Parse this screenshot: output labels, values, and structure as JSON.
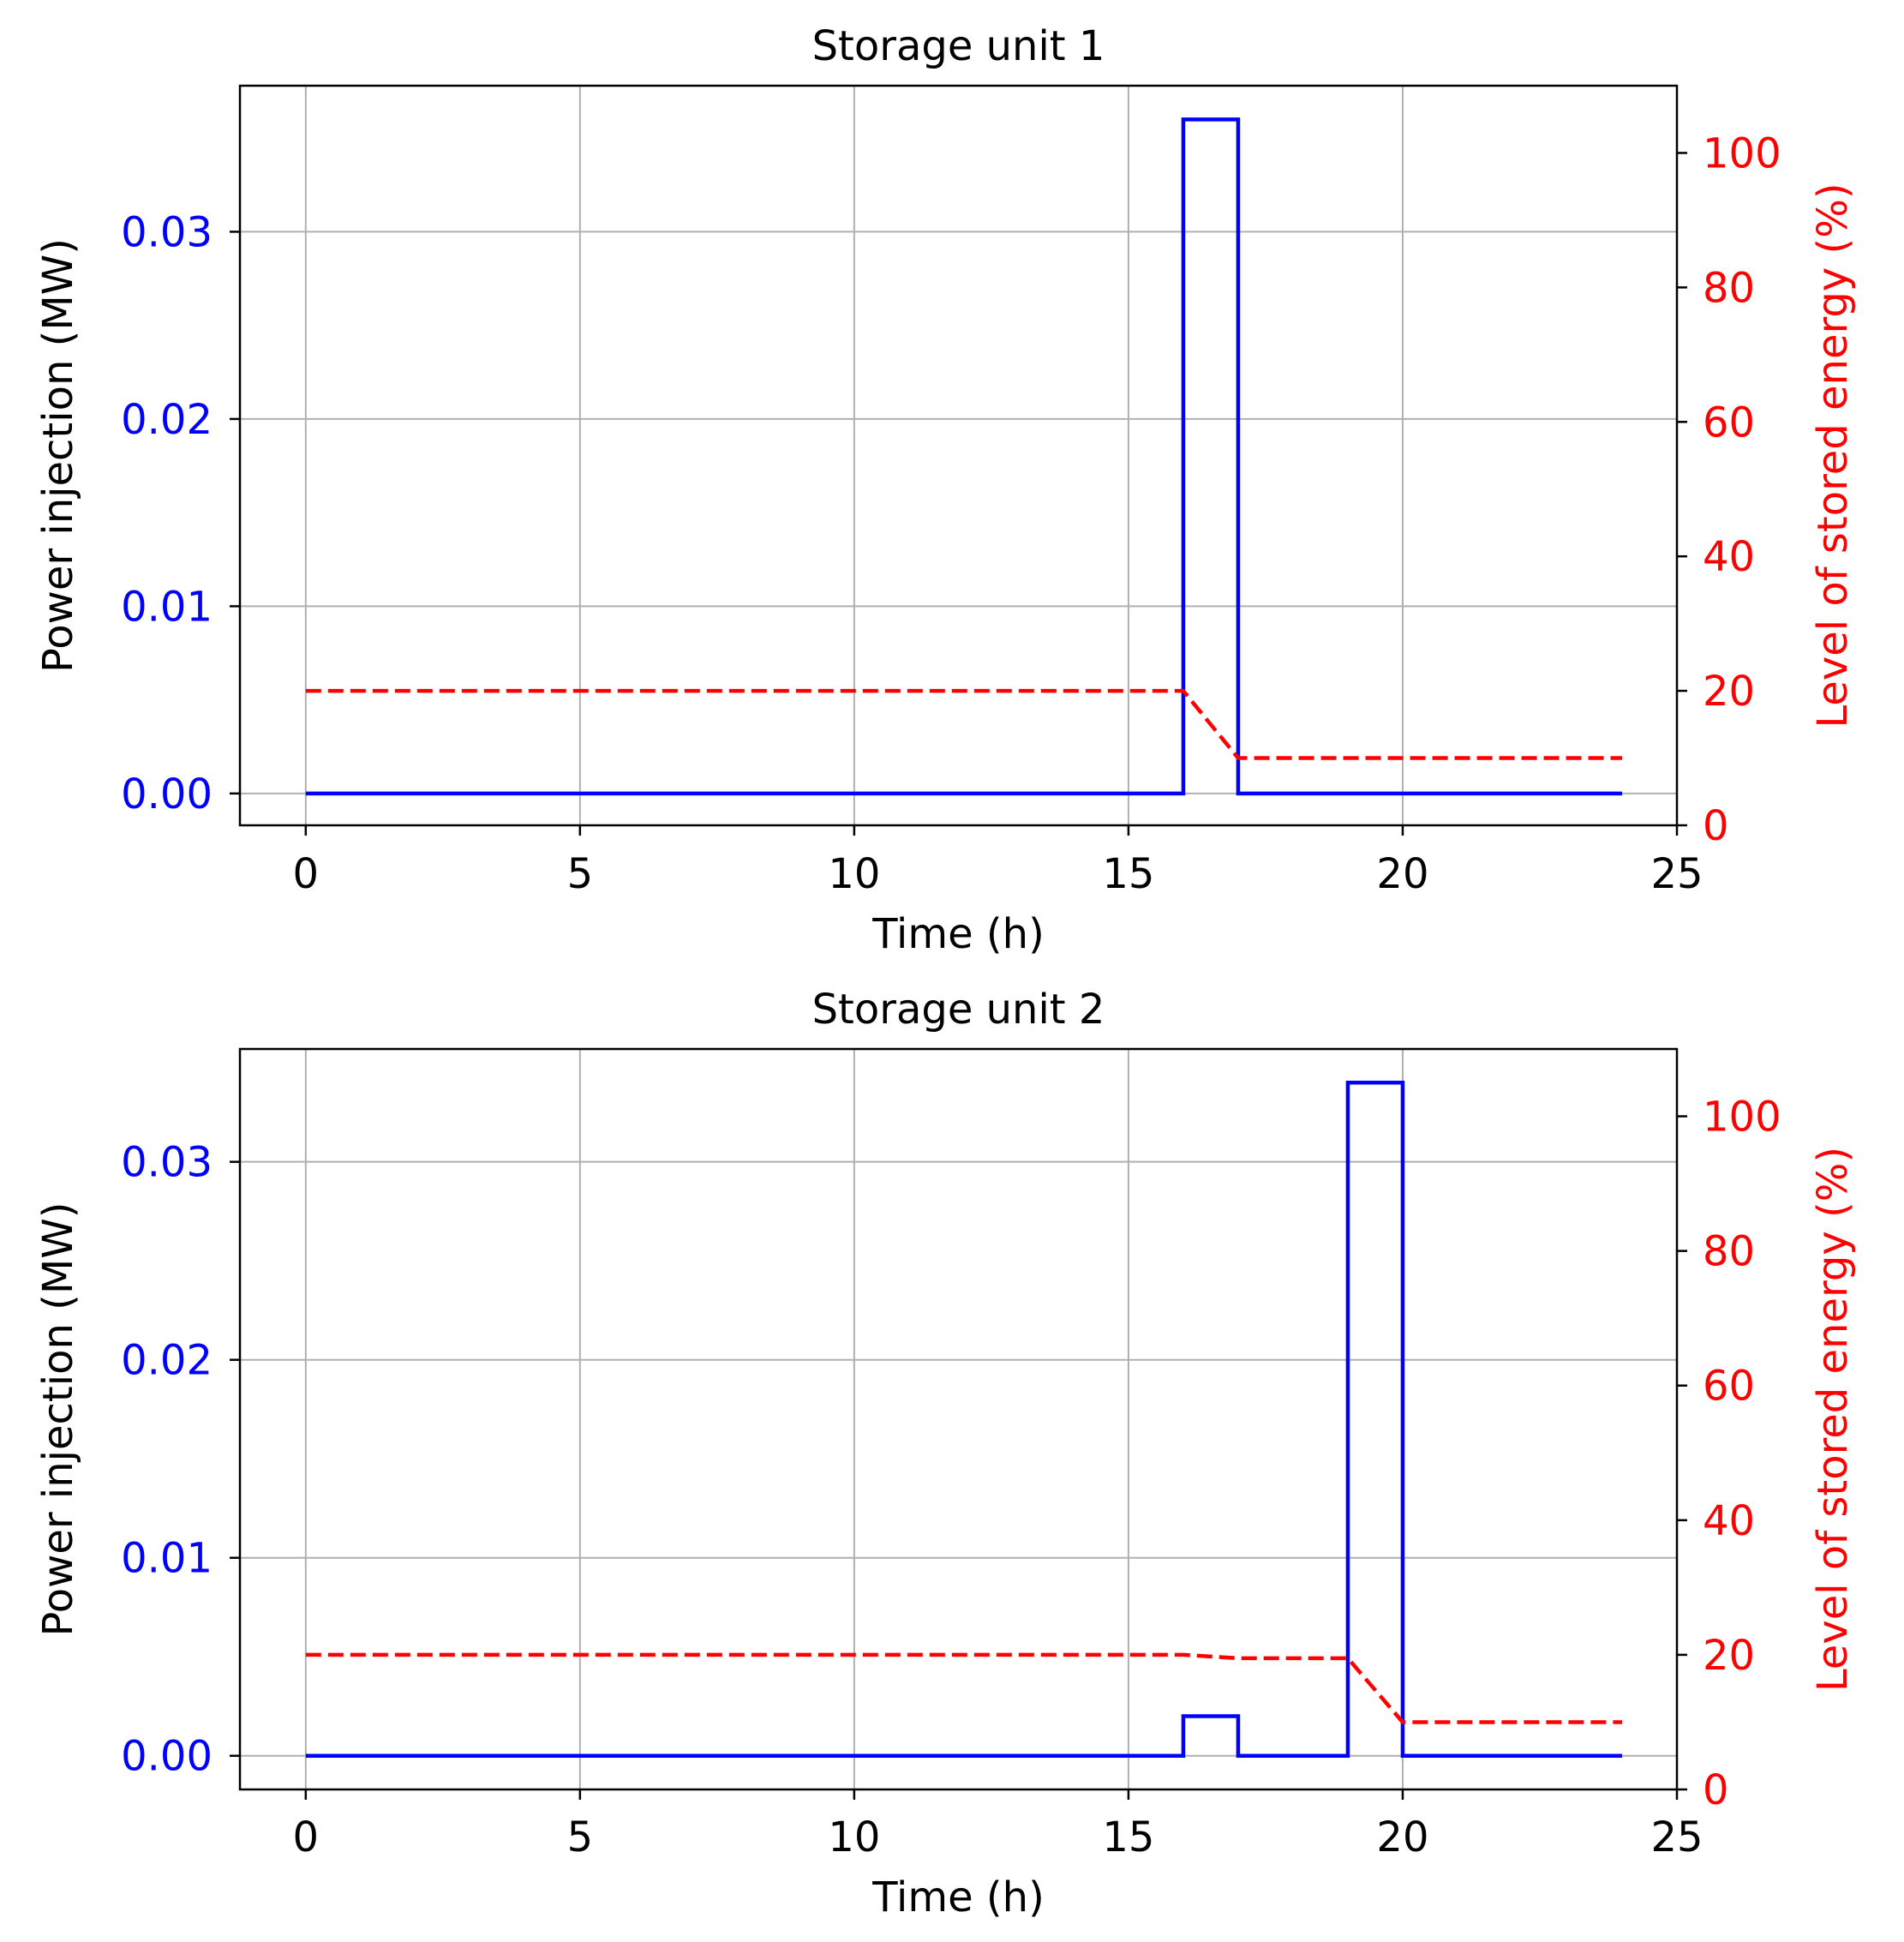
{
  "chart_data": [
    {
      "type": "line",
      "title": "Storage unit 1",
      "xlabel": "Time (h)",
      "ylabel_left": "Power injection (MW)",
      "ylabel_right": "Level of stored energy (%)",
      "xlim": [
        -1.2,
        25
      ],
      "ylim_left": [
        -0.0017,
        0.0378
      ],
      "ylim_right": [
        0,
        110
      ],
      "xticks": [
        "0",
        "5",
        "10",
        "15",
        "20",
        "25"
      ],
      "yticks_left": [
        "0.00",
        "0.01",
        "0.02",
        "0.03"
      ],
      "yticks_right": [
        "0",
        "20",
        "40",
        "60",
        "80",
        "100"
      ],
      "grid": true,
      "series": [
        {
          "axis": "left",
          "color": "#0000ff",
          "style": "solid",
          "step": "post",
          "x": [
            0,
            1,
            2,
            3,
            4,
            5,
            6,
            7,
            8,
            9,
            10,
            11,
            12,
            13,
            14,
            15,
            16,
            17,
            18,
            19,
            20,
            21,
            22,
            23,
            24
          ],
          "y": [
            0,
            0,
            0,
            0,
            0,
            0,
            0,
            0,
            0,
            0,
            0,
            0,
            0,
            0,
            0,
            0,
            0.036,
            0,
            0,
            0,
            0,
            0,
            0,
            0,
            0
          ]
        },
        {
          "axis": "right",
          "color": "#ff0000",
          "style": "dashed",
          "x": [
            0,
            1,
            2,
            3,
            4,
            5,
            6,
            7,
            8,
            9,
            10,
            11,
            12,
            13,
            14,
            15,
            16,
            17,
            18,
            19,
            20,
            21,
            22,
            23,
            24
          ],
          "y": [
            20,
            20,
            20,
            20,
            20,
            20,
            20,
            20,
            20,
            20,
            20,
            20,
            20,
            20,
            20,
            20,
            20,
            10,
            10,
            10,
            10,
            10,
            10,
            10,
            10
          ]
        }
      ]
    },
    {
      "type": "line",
      "title": "Storage unit 2",
      "xlabel": "Time (h)",
      "ylabel_left": "Power injection (MW)",
      "ylabel_right": "Level of stored energy (%)",
      "xlim": [
        -1.2,
        25
      ],
      "ylim_left": [
        -0.0017,
        0.0357
      ],
      "ylim_right": [
        0,
        110
      ],
      "xticks": [
        "0",
        "5",
        "10",
        "15",
        "20",
        "25"
      ],
      "yticks_left": [
        "0.00",
        "0.01",
        "0.02",
        "0.03"
      ],
      "yticks_right": [
        "0",
        "20",
        "40",
        "60",
        "80",
        "100"
      ],
      "grid": true,
      "series": [
        {
          "axis": "left",
          "color": "#0000ff",
          "style": "solid",
          "step": "post",
          "x": [
            0,
            1,
            2,
            3,
            4,
            5,
            6,
            7,
            8,
            9,
            10,
            11,
            12,
            13,
            14,
            15,
            16,
            17,
            18,
            19,
            20,
            21,
            22,
            23,
            24
          ],
          "y": [
            0,
            0,
            0,
            0,
            0,
            0,
            0,
            0,
            0,
            0,
            0,
            0,
            0,
            0,
            0,
            0,
            0.002,
            0,
            0,
            0.034,
            0,
            0,
            0,
            0,
            0
          ]
        },
        {
          "axis": "right",
          "color": "#ff0000",
          "style": "dashed",
          "x": [
            0,
            1,
            2,
            3,
            4,
            5,
            6,
            7,
            8,
            9,
            10,
            11,
            12,
            13,
            14,
            15,
            16,
            17,
            18,
            19,
            20,
            21,
            22,
            23,
            24
          ],
          "y": [
            20,
            20,
            20,
            20,
            20,
            20,
            20,
            20,
            20,
            20,
            20,
            20,
            20,
            20,
            20,
            20,
            20,
            19.5,
            19.5,
            19.5,
            10,
            10,
            10,
            10,
            10
          ]
        }
      ]
    }
  ]
}
